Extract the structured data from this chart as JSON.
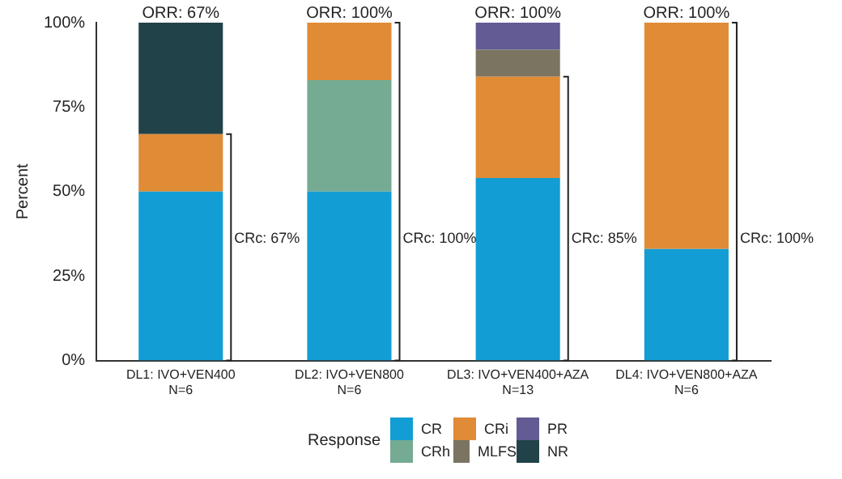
{
  "chart_data": {
    "type": "bar",
    "stacked": true,
    "ylabel": "Percent",
    "legend_title": "Response",
    "legend": "bottom",
    "categories": [
      "DL1: IVO+VEN400\nN=6",
      "DL2: IVO+VEN800\nN=6",
      "DL3: IVO+VEN400+AZA\nN=13",
      "DL4: IVO+VEN800+AZA\nN=6"
    ],
    "ylim": [
      0,
      100
    ],
    "yticks": [
      {
        "value": 0,
        "label": "0%"
      },
      {
        "value": 25,
        "label": "25%"
      },
      {
        "value": 50,
        "label": "50%"
      },
      {
        "value": 75,
        "label": "75%"
      },
      {
        "value": 100,
        "label": "100%"
      }
    ],
    "grid": false,
    "series": [
      {
        "name": "CR",
        "color": "#129dd4",
        "values": [
          50,
          50,
          54,
          33
        ]
      },
      {
        "name": "CRh",
        "color": "#74ab92",
        "values": [
          null,
          33,
          null,
          null
        ]
      },
      {
        "name": "CRi",
        "color": "#e08b36",
        "values": [
          17,
          17,
          30,
          67
        ]
      },
      {
        "name": "MLFS",
        "color": "#7a7461",
        "values": [
          null,
          null,
          8,
          null
        ]
      },
      {
        "name": "PR",
        "color": "#625b94",
        "values": [
          null,
          null,
          8,
          null
        ]
      },
      {
        "name": "NR",
        "color": "#22424a",
        "values": [
          33,
          null,
          null,
          null
        ]
      }
    ],
    "annotations": [
      {
        "text": "ORR: 67%",
        "x": "DL1: IVO+VEN400\nN=6",
        "y": 100
      },
      {
        "text": "ORR: 100%",
        "x": "DL2: IVO+VEN800\nN=6",
        "y": 100
      },
      {
        "text": "ORR: 100%",
        "x": "DL3: IVO+VEN400+AZA\nN=13",
        "y": 100
      },
      {
        "text": "ORR: 100%",
        "x": "DL4: IVO+VEN800+AZA\nN=6",
        "y": 100
      },
      "CRc: 67%",
      "CRc: 100%",
      "CRc: 85%",
      "CRc: 100%"
    ]
  }
}
